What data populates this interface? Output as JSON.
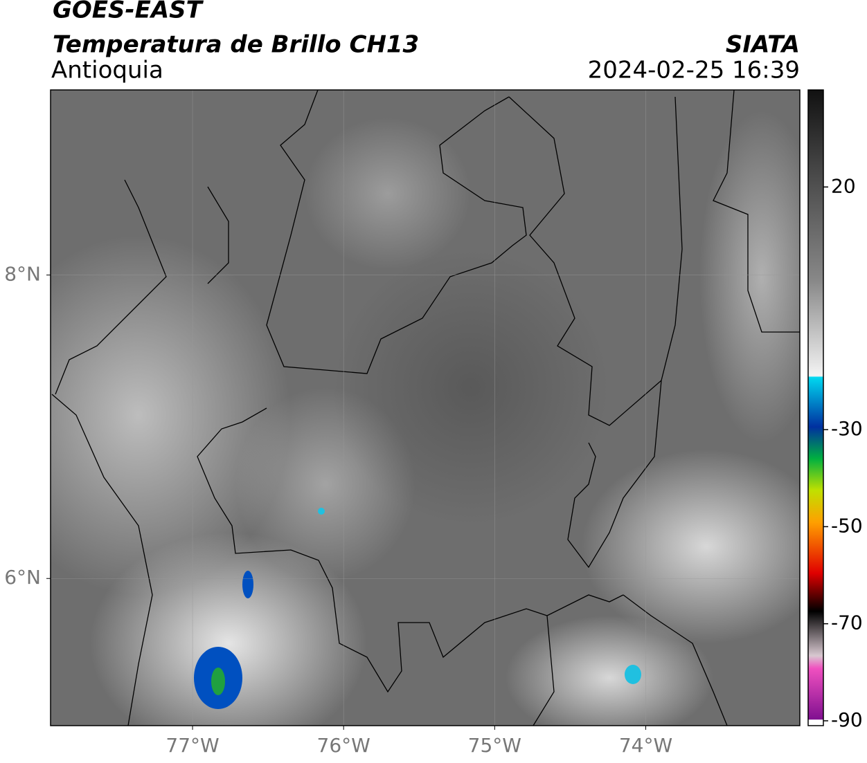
{
  "header": {
    "title": "GOES-EAST",
    "subtitle": "Temperatura de Brillo CH13",
    "region": "Antioquia",
    "source": "SIATA",
    "datetime": "2024-02-25 16:39"
  },
  "map": {
    "xlim": [
      -77.94,
      -72.98
    ],
    "ylim": [
      5.03,
      9.22
    ],
    "xticks": [
      {
        "value": -77,
        "label": "77°W"
      },
      {
        "value": -76,
        "label": "76°W"
      },
      {
        "value": -75,
        "label": "75°W"
      },
      {
        "value": -74,
        "label": "74°W"
      }
    ],
    "yticks": [
      {
        "value": 8,
        "label": "8°N"
      },
      {
        "value": 6,
        "label": "6°N"
      }
    ],
    "grid": true
  },
  "colorbar": {
    "clim": [
      -91,
      40
    ],
    "ticks": [
      20,
      -30,
      -50,
      -70,
      -90
    ]
  }
}
